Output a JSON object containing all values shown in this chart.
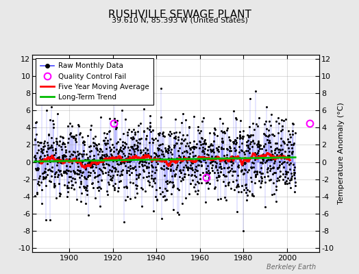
{
  "title": "RUSHVILLE SEWAGE PLANT",
  "subtitle": "39.610 N, 85.393 W (United States)",
  "ylabel": "Temperature Anomaly (°C)",
  "watermark": "Berkeley Earth",
  "ylim": [
    -10.5,
    12.5
  ],
  "yticks": [
    -10,
    -8,
    -6,
    -4,
    -2,
    0,
    2,
    4,
    6,
    8,
    10,
    12
  ],
  "xlim": [
    1883,
    2015
  ],
  "xticks": [
    1900,
    1920,
    1940,
    1960,
    1980,
    2000
  ],
  "raw_line_color": "#4444FF",
  "raw_marker_color": "#000000",
  "qc_fail_color": "#FF00FF",
  "moving_avg_color": "#FF0000",
  "trend_color": "#00BB00",
  "bg_color": "#E8E8E8",
  "plot_bg_color": "#FFFFFF",
  "grid_color": "#AAAAAA",
  "seed": 17,
  "n_months": 1440,
  "start_year": 1884.0,
  "noise_std": 2.2,
  "moving_avg_window": 60,
  "qc_fail_years": [
    1920.5,
    1963.0,
    2010.5
  ],
  "qc_fail_values": [
    4.5,
    -1.8,
    4.5
  ]
}
